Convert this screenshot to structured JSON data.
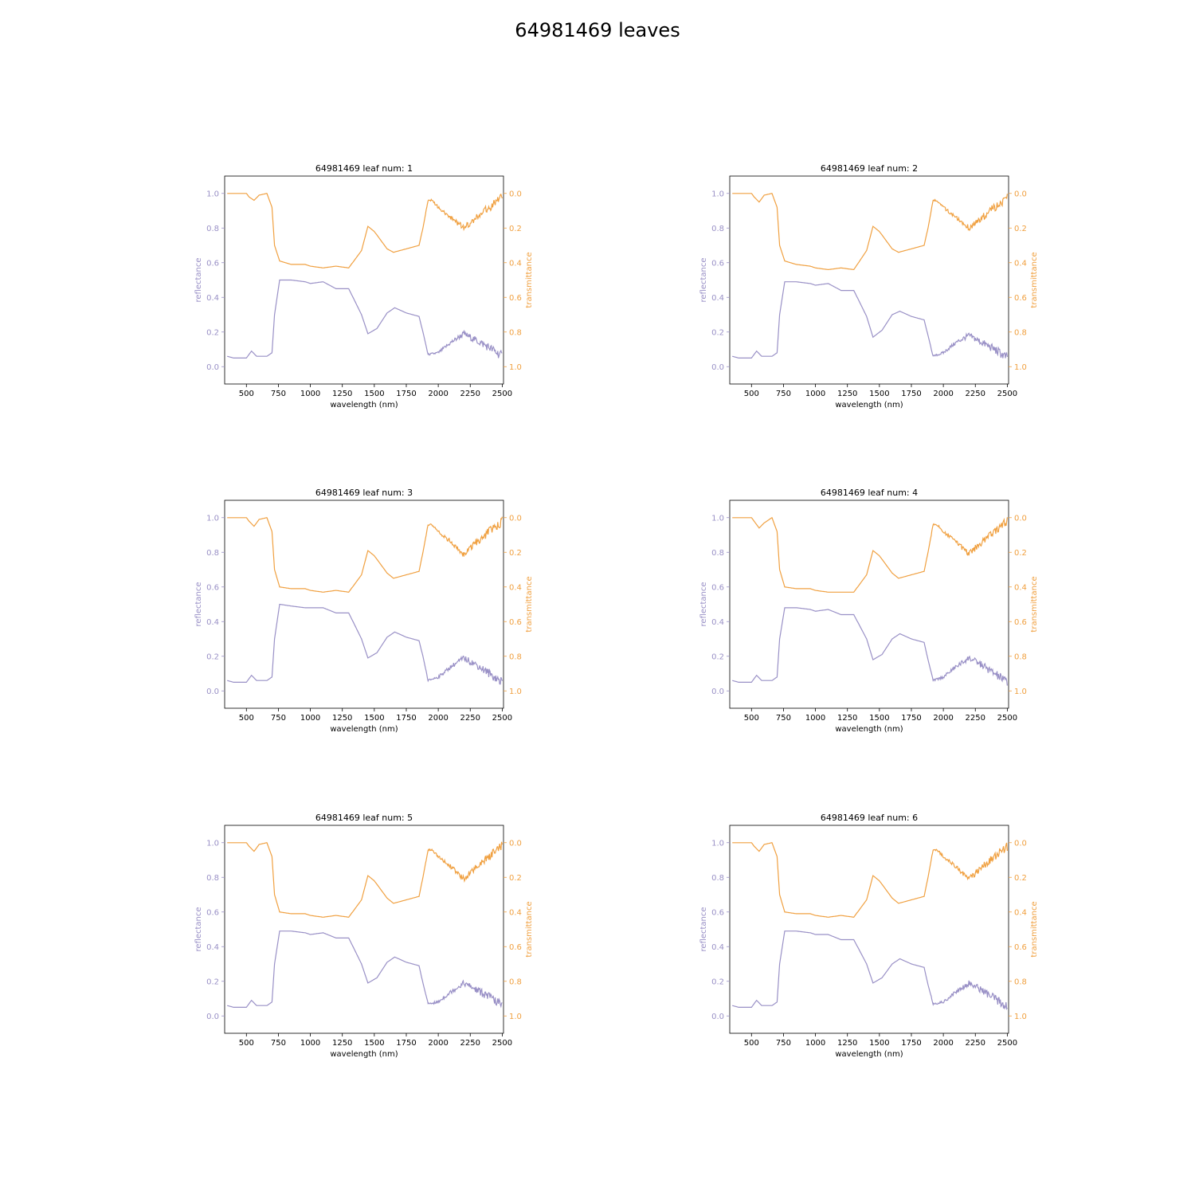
{
  "figure": {
    "title": "64981469 leaves",
    "colors": {
      "reflectance": "#9990c6",
      "transmittance": "#f0a040",
      "axes": "#000000"
    }
  },
  "chart_data": [
    {
      "type": "line",
      "title": "64981469 leaf num: 1",
      "xlabel": "wavelength (nm)",
      "ylabel": "reflectance",
      "y2label": "transmittance",
      "xlim": [
        330,
        2510
      ],
      "ylim": [
        -0.1,
        1.1
      ],
      "y2lim": [
        1.1,
        -0.1
      ],
      "y2_inverted": true,
      "xticks": [
        500,
        750,
        1000,
        1250,
        1500,
        1750,
        2000,
        2250,
        2500
      ],
      "yticks": [
        0.0,
        0.2,
        0.4,
        0.6,
        0.8,
        1.0
      ],
      "y2ticks": [
        0.0,
        0.2,
        0.4,
        0.6,
        0.8,
        1.0
      ],
      "series": [
        {
          "name": "reflectance",
          "axis": "left",
          "x": [
            350,
            400,
            500,
            540,
            580,
            660,
            700,
            720,
            760,
            850,
            960,
            1000,
            1100,
            1200,
            1300,
            1400,
            1450,
            1520,
            1600,
            1660,
            1750,
            1800,
            1850,
            1880,
            1920,
            2000,
            2100,
            2200,
            2300,
            2400,
            2500
          ],
          "y": [
            0.06,
            0.05,
            0.05,
            0.09,
            0.06,
            0.06,
            0.08,
            0.3,
            0.5,
            0.5,
            0.49,
            0.48,
            0.49,
            0.45,
            0.45,
            0.3,
            0.19,
            0.22,
            0.31,
            0.34,
            0.31,
            0.3,
            0.29,
            0.2,
            0.07,
            0.08,
            0.14,
            0.19,
            0.15,
            0.11,
            0.06
          ]
        },
        {
          "name": "transmittance",
          "axis": "right",
          "x": [
            350,
            400,
            500,
            520,
            560,
            600,
            660,
            700,
            720,
            760,
            850,
            960,
            1000,
            1100,
            1200,
            1300,
            1400,
            1450,
            1500,
            1600,
            1650,
            1750,
            1800,
            1850,
            1880,
            1920,
            1950,
            2000,
            2100,
            2200,
            2300,
            2400,
            2500
          ],
          "y": [
            0.0,
            0.0,
            0.0,
            0.02,
            0.04,
            0.01,
            0.0,
            0.08,
            0.3,
            0.39,
            0.41,
            0.41,
            0.42,
            0.43,
            0.42,
            0.43,
            0.33,
            0.19,
            0.22,
            0.32,
            0.34,
            0.32,
            0.31,
            0.3,
            0.2,
            0.04,
            0.04,
            0.08,
            0.14,
            0.2,
            0.14,
            0.08,
            0.02
          ]
        }
      ]
    },
    {
      "type": "line",
      "title": "64981469 leaf num: 2",
      "xlabel": "wavelength (nm)",
      "ylabel": "reflectance",
      "y2label": "transmittance",
      "xlim": [
        330,
        2510
      ],
      "ylim": [
        -0.1,
        1.1
      ],
      "y2lim": [
        1.1,
        -0.1
      ],
      "y2_inverted": true,
      "xticks": [
        500,
        750,
        1000,
        1250,
        1500,
        1750,
        2000,
        2250,
        2500
      ],
      "yticks": [
        0.0,
        0.2,
        0.4,
        0.6,
        0.8,
        1.0
      ],
      "y2ticks": [
        0.0,
        0.2,
        0.4,
        0.6,
        0.8,
        1.0
      ],
      "series": [
        {
          "name": "reflectance",
          "axis": "left",
          "x": [
            350,
            400,
            500,
            540,
            580,
            660,
            700,
            720,
            760,
            850,
            960,
            1000,
            1100,
            1200,
            1300,
            1400,
            1450,
            1520,
            1600,
            1660,
            1750,
            1800,
            1850,
            1880,
            1920,
            2000,
            2100,
            2200,
            2300,
            2400,
            2500
          ],
          "y": [
            0.06,
            0.05,
            0.05,
            0.09,
            0.06,
            0.06,
            0.08,
            0.3,
            0.49,
            0.49,
            0.48,
            0.47,
            0.48,
            0.44,
            0.44,
            0.29,
            0.17,
            0.21,
            0.3,
            0.32,
            0.29,
            0.28,
            0.27,
            0.18,
            0.06,
            0.08,
            0.14,
            0.18,
            0.14,
            0.1,
            0.05
          ]
        },
        {
          "name": "transmittance",
          "axis": "right",
          "x": [
            350,
            400,
            500,
            520,
            560,
            600,
            660,
            700,
            720,
            760,
            850,
            960,
            1000,
            1100,
            1200,
            1300,
            1400,
            1450,
            1500,
            1600,
            1650,
            1750,
            1800,
            1850,
            1880,
            1920,
            1950,
            2000,
            2100,
            2200,
            2300,
            2400,
            2500
          ],
          "y": [
            0.0,
            0.0,
            0.0,
            0.02,
            0.05,
            0.01,
            0.0,
            0.08,
            0.3,
            0.39,
            0.41,
            0.42,
            0.43,
            0.44,
            0.43,
            0.44,
            0.33,
            0.19,
            0.22,
            0.32,
            0.34,
            0.32,
            0.31,
            0.3,
            0.2,
            0.04,
            0.04,
            0.08,
            0.14,
            0.2,
            0.14,
            0.08,
            0.02
          ]
        }
      ]
    },
    {
      "type": "line",
      "title": "64981469 leaf num: 3",
      "xlabel": "wavelength (nm)",
      "ylabel": "reflectance",
      "y2label": "transmittance",
      "xlim": [
        330,
        2510
      ],
      "ylim": [
        -0.1,
        1.1
      ],
      "y2lim": [
        1.1,
        -0.1
      ],
      "y2_inverted": true,
      "xticks": [
        500,
        750,
        1000,
        1250,
        1500,
        1750,
        2000,
        2250,
        2500
      ],
      "yticks": [
        0.0,
        0.2,
        0.4,
        0.6,
        0.8,
        1.0
      ],
      "y2ticks": [
        0.0,
        0.2,
        0.4,
        0.6,
        0.8,
        1.0
      ],
      "series": [
        {
          "name": "reflectance",
          "axis": "left",
          "x": [
            350,
            400,
            500,
            540,
            580,
            660,
            700,
            720,
            760,
            850,
            960,
            1000,
            1100,
            1200,
            1300,
            1400,
            1450,
            1520,
            1600,
            1660,
            1750,
            1800,
            1850,
            1880,
            1920,
            2000,
            2100,
            2200,
            2300,
            2400,
            2500
          ],
          "y": [
            0.06,
            0.05,
            0.05,
            0.09,
            0.06,
            0.06,
            0.08,
            0.3,
            0.5,
            0.49,
            0.48,
            0.48,
            0.48,
            0.45,
            0.45,
            0.3,
            0.19,
            0.22,
            0.31,
            0.34,
            0.31,
            0.3,
            0.29,
            0.2,
            0.06,
            0.08,
            0.14,
            0.19,
            0.15,
            0.1,
            0.05
          ]
        },
        {
          "name": "transmittance",
          "axis": "right",
          "x": [
            350,
            400,
            500,
            520,
            560,
            600,
            660,
            700,
            720,
            760,
            850,
            960,
            1000,
            1100,
            1200,
            1300,
            1400,
            1450,
            1500,
            1600,
            1650,
            1750,
            1800,
            1850,
            1880,
            1920,
            1950,
            2000,
            2100,
            2200,
            2300,
            2400,
            2500
          ],
          "y": [
            0.0,
            0.0,
            0.0,
            0.02,
            0.05,
            0.01,
            0.0,
            0.08,
            0.3,
            0.4,
            0.41,
            0.41,
            0.42,
            0.43,
            0.42,
            0.43,
            0.33,
            0.19,
            0.22,
            0.32,
            0.35,
            0.33,
            0.32,
            0.31,
            0.2,
            0.04,
            0.04,
            0.08,
            0.14,
            0.21,
            0.14,
            0.08,
            0.02
          ]
        }
      ]
    },
    {
      "type": "line",
      "title": "64981469 leaf num: 4",
      "xlabel": "wavelength (nm)",
      "ylabel": "reflectance",
      "y2label": "transmittance",
      "xlim": [
        330,
        2510
      ],
      "ylim": [
        -0.1,
        1.1
      ],
      "y2lim": [
        1.1,
        -0.1
      ],
      "y2_inverted": true,
      "xticks": [
        500,
        750,
        1000,
        1250,
        1500,
        1750,
        2000,
        2250,
        2500
      ],
      "yticks": [
        0.0,
        0.2,
        0.4,
        0.6,
        0.8,
        1.0
      ],
      "y2ticks": [
        0.0,
        0.2,
        0.4,
        0.6,
        0.8,
        1.0
      ],
      "series": [
        {
          "name": "reflectance",
          "axis": "left",
          "x": [
            350,
            400,
            500,
            540,
            580,
            660,
            700,
            720,
            760,
            850,
            960,
            1000,
            1100,
            1200,
            1300,
            1400,
            1450,
            1520,
            1600,
            1660,
            1750,
            1800,
            1850,
            1880,
            1920,
            2000,
            2100,
            2200,
            2300,
            2400,
            2500
          ],
          "y": [
            0.06,
            0.05,
            0.05,
            0.09,
            0.06,
            0.06,
            0.08,
            0.3,
            0.48,
            0.48,
            0.47,
            0.46,
            0.47,
            0.44,
            0.44,
            0.3,
            0.18,
            0.21,
            0.3,
            0.33,
            0.3,
            0.29,
            0.28,
            0.18,
            0.06,
            0.08,
            0.14,
            0.19,
            0.15,
            0.1,
            0.05
          ]
        },
        {
          "name": "transmittance",
          "axis": "right",
          "x": [
            350,
            400,
            500,
            520,
            560,
            600,
            660,
            700,
            720,
            760,
            850,
            960,
            1000,
            1100,
            1200,
            1300,
            1400,
            1450,
            1500,
            1600,
            1650,
            1750,
            1800,
            1850,
            1880,
            1920,
            1950,
            2000,
            2100,
            2200,
            2300,
            2400,
            2500
          ],
          "y": [
            0.0,
            0.0,
            0.0,
            0.02,
            0.06,
            0.03,
            0.0,
            0.08,
            0.3,
            0.4,
            0.41,
            0.41,
            0.42,
            0.43,
            0.43,
            0.43,
            0.33,
            0.19,
            0.22,
            0.32,
            0.35,
            0.33,
            0.32,
            0.31,
            0.2,
            0.04,
            0.04,
            0.08,
            0.14,
            0.21,
            0.14,
            0.08,
            0.02
          ]
        }
      ]
    },
    {
      "type": "line",
      "title": "64981469 leaf num: 5",
      "xlabel": "wavelength (nm)",
      "ylabel": "reflectance",
      "y2label": "transmittance",
      "xlim": [
        330,
        2510
      ],
      "ylim": [
        -0.1,
        1.1
      ],
      "y2lim": [
        1.1,
        -0.1
      ],
      "y2_inverted": true,
      "xticks": [
        500,
        750,
        1000,
        1250,
        1500,
        1750,
        2000,
        2250,
        2500
      ],
      "yticks": [
        0.0,
        0.2,
        0.4,
        0.6,
        0.8,
        1.0
      ],
      "y2ticks": [
        0.0,
        0.2,
        0.4,
        0.6,
        0.8,
        1.0
      ],
      "series": [
        {
          "name": "reflectance",
          "axis": "left",
          "x": [
            350,
            400,
            500,
            540,
            580,
            660,
            700,
            720,
            760,
            850,
            960,
            1000,
            1100,
            1200,
            1300,
            1400,
            1450,
            1520,
            1600,
            1660,
            1750,
            1800,
            1850,
            1880,
            1920,
            2000,
            2100,
            2200,
            2300,
            2400,
            2500
          ],
          "y": [
            0.06,
            0.05,
            0.05,
            0.09,
            0.06,
            0.06,
            0.08,
            0.3,
            0.49,
            0.49,
            0.48,
            0.47,
            0.48,
            0.45,
            0.45,
            0.3,
            0.19,
            0.22,
            0.31,
            0.34,
            0.31,
            0.3,
            0.29,
            0.19,
            0.07,
            0.08,
            0.14,
            0.19,
            0.15,
            0.11,
            0.06
          ]
        },
        {
          "name": "transmittance",
          "axis": "right",
          "x": [
            350,
            400,
            500,
            520,
            560,
            600,
            660,
            700,
            720,
            760,
            850,
            960,
            1000,
            1100,
            1200,
            1300,
            1400,
            1450,
            1500,
            1600,
            1650,
            1750,
            1800,
            1850,
            1880,
            1920,
            1950,
            2000,
            2100,
            2200,
            2300,
            2400,
            2500
          ],
          "y": [
            0.0,
            0.0,
            0.0,
            0.02,
            0.05,
            0.01,
            0.0,
            0.08,
            0.3,
            0.4,
            0.41,
            0.41,
            0.42,
            0.43,
            0.42,
            0.43,
            0.33,
            0.19,
            0.22,
            0.32,
            0.35,
            0.33,
            0.32,
            0.31,
            0.2,
            0.04,
            0.04,
            0.08,
            0.14,
            0.21,
            0.14,
            0.08,
            0.02
          ]
        }
      ]
    },
    {
      "type": "line",
      "title": "64981469 leaf num: 6",
      "xlabel": "wavelength (nm)",
      "ylabel": "reflectance",
      "y2label": "transmittance",
      "xlim": [
        330,
        2510
      ],
      "ylim": [
        -0.1,
        1.1
      ],
      "y2lim": [
        1.1,
        -0.1
      ],
      "y2_inverted": true,
      "xticks": [
        500,
        750,
        1000,
        1250,
        1500,
        1750,
        2000,
        2250,
        2500
      ],
      "yticks": [
        0.0,
        0.2,
        0.4,
        0.6,
        0.8,
        1.0
      ],
      "y2ticks": [
        0.0,
        0.2,
        0.4,
        0.6,
        0.8,
        1.0
      ],
      "series": [
        {
          "name": "reflectance",
          "axis": "left",
          "x": [
            350,
            400,
            500,
            540,
            580,
            660,
            700,
            720,
            760,
            850,
            960,
            1000,
            1100,
            1200,
            1300,
            1400,
            1450,
            1520,
            1600,
            1660,
            1750,
            1800,
            1850,
            1880,
            1920,
            2000,
            2100,
            2200,
            2300,
            2400,
            2500
          ],
          "y": [
            0.06,
            0.05,
            0.05,
            0.09,
            0.06,
            0.06,
            0.08,
            0.3,
            0.49,
            0.49,
            0.48,
            0.47,
            0.47,
            0.44,
            0.44,
            0.3,
            0.19,
            0.22,
            0.3,
            0.33,
            0.3,
            0.29,
            0.28,
            0.18,
            0.07,
            0.08,
            0.14,
            0.19,
            0.15,
            0.1,
            0.05
          ]
        },
        {
          "name": "transmittance",
          "axis": "right",
          "x": [
            350,
            400,
            500,
            520,
            560,
            600,
            660,
            700,
            720,
            760,
            850,
            960,
            1000,
            1100,
            1200,
            1300,
            1400,
            1450,
            1500,
            1600,
            1650,
            1750,
            1800,
            1850,
            1880,
            1920,
            1950,
            2000,
            2100,
            2200,
            2300,
            2400,
            2500
          ],
          "y": [
            0.0,
            0.0,
            0.0,
            0.02,
            0.05,
            0.01,
            0.0,
            0.08,
            0.3,
            0.4,
            0.41,
            0.41,
            0.42,
            0.43,
            0.42,
            0.43,
            0.33,
            0.19,
            0.22,
            0.32,
            0.35,
            0.33,
            0.32,
            0.31,
            0.2,
            0.04,
            0.04,
            0.08,
            0.14,
            0.21,
            0.14,
            0.08,
            0.02
          ]
        }
      ]
    }
  ]
}
